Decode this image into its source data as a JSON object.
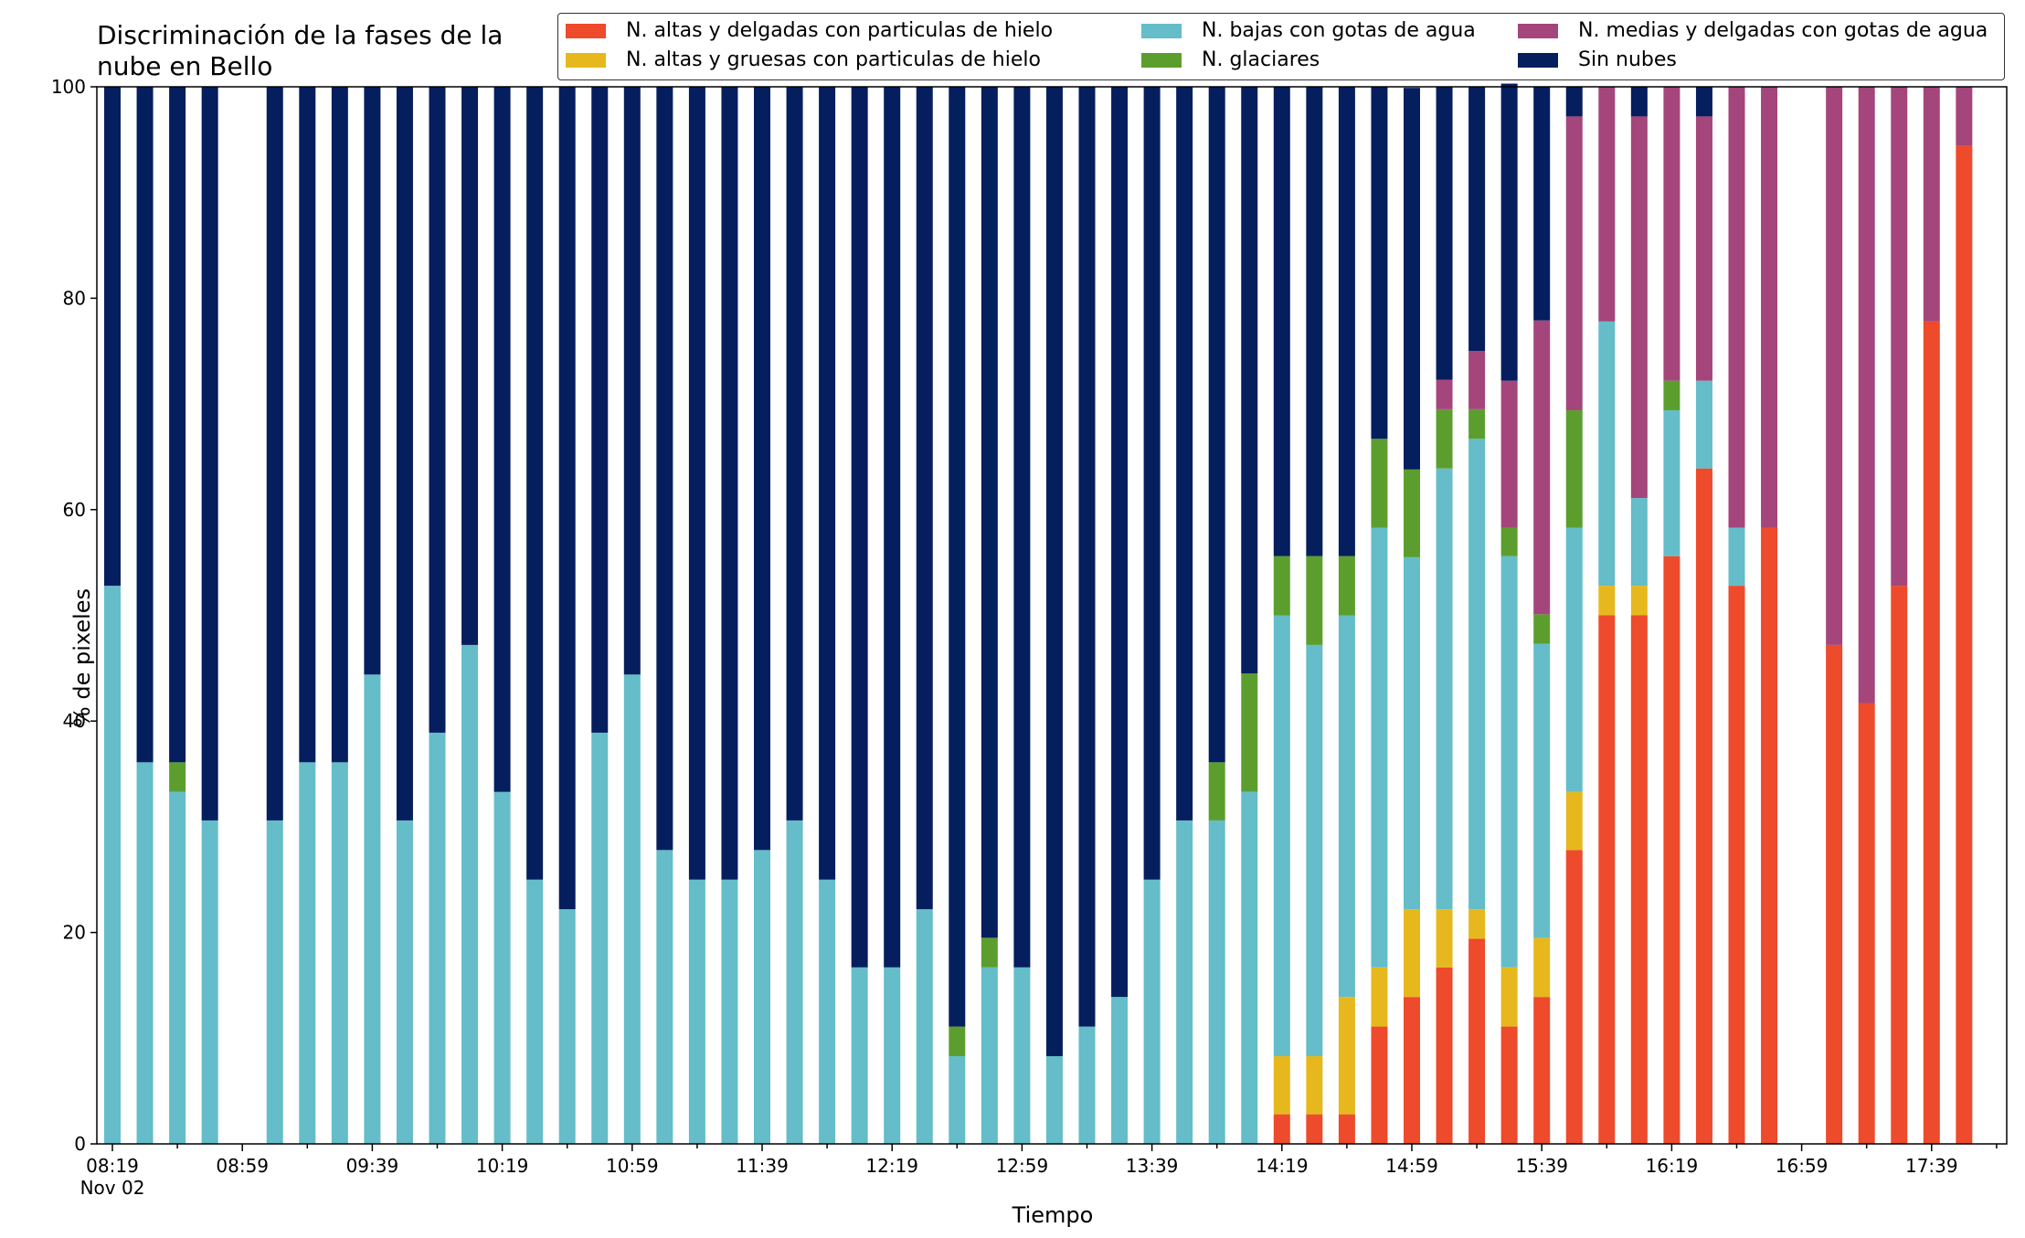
{
  "chart_data": {
    "type": "bar",
    "stacked": true,
    "title": "Discriminación de la fases de la\nnube en Bello",
    "xlabel": "Tiempo",
    "ylabel": "% de pixeles",
    "ylim": [
      0,
      100
    ],
    "yticks": [
      0,
      20,
      40,
      60,
      80,
      100
    ],
    "legend_position": "top-right",
    "xtick_labels": [
      "08:19",
      "08:59",
      "09:39",
      "10:19",
      "10:59",
      "11:39",
      "12:19",
      "12:59",
      "13:39",
      "14:19",
      "14:59",
      "15:39",
      "16:19",
      "16:59",
      "17:39"
    ],
    "xtick_sublabel": "Nov 02",
    "categories": [
      "08:19",
      "08:29",
      "08:39",
      "08:49",
      "08:59",
      "09:09",
      "09:19",
      "09:29",
      "09:39",
      "09:49",
      "09:59",
      "10:09",
      "10:19",
      "10:29",
      "10:39",
      "10:49",
      "10:59",
      "11:09",
      "11:19",
      "11:29",
      "11:39",
      "11:49",
      "11:59",
      "12:09",
      "12:19",
      "12:29",
      "12:39",
      "12:49",
      "12:59",
      "13:09",
      "13:19",
      "13:29",
      "13:39",
      "13:49",
      "13:59",
      "14:09",
      "14:19",
      "14:29",
      "14:39",
      "14:49",
      "14:59",
      "15:09",
      "15:19",
      "15:29",
      "15:39",
      "15:49",
      "15:59",
      "16:09",
      "16:19",
      "16:29",
      "16:39",
      "16:49",
      "16:59",
      "17:09",
      "17:19",
      "17:29",
      "17:39",
      "17:49"
    ],
    "series": [
      {
        "name": "N. altas y delgadas con particulas de hielo",
        "color": "#ee4a2c",
        "values": [
          0,
          0,
          0,
          0,
          null,
          0,
          0,
          0,
          0,
          0,
          0,
          0,
          0,
          0,
          0,
          0,
          0,
          0,
          0,
          0,
          0,
          0,
          0,
          0,
          0,
          0,
          0,
          0,
          0,
          0,
          0,
          0,
          0,
          0,
          0,
          0,
          2.8,
          2.8,
          2.8,
          11.1,
          13.9,
          16.7,
          19.4,
          11.1,
          13.9,
          27.8,
          50,
          50,
          55.6,
          63.9,
          52.8,
          58.3,
          null,
          47.2,
          41.7,
          52.8,
          77.8,
          94.4
        ]
      },
      {
        "name": "N. altas y gruesas con particulas de hielo",
        "color": "#e6b81e",
        "values": [
          0,
          0,
          0,
          0,
          null,
          0,
          0,
          0,
          0,
          0,
          0,
          0,
          0,
          0,
          0,
          0,
          0,
          0,
          0,
          0,
          0,
          0,
          0,
          0,
          0,
          0,
          0,
          0,
          0,
          0,
          0,
          0,
          0,
          0,
          0,
          0,
          5.5,
          5.5,
          11.1,
          5.6,
          8.3,
          5.5,
          2.8,
          5.6,
          5.6,
          5.5,
          2.8,
          2.8,
          0,
          0,
          0,
          0,
          null,
          0,
          0,
          0,
          0,
          0
        ]
      },
      {
        "name": "N. bajas con gotas de agua",
        "color": "#64bdc9",
        "values": [
          52.8,
          36.1,
          33.3,
          30.6,
          null,
          30.6,
          36.1,
          36.1,
          44.4,
          30.6,
          38.9,
          47.2,
          33.3,
          25,
          22.2,
          38.9,
          44.4,
          27.8,
          25,
          25,
          27.8,
          30.6,
          25,
          16.7,
          16.7,
          22.2,
          8.3,
          16.7,
          16.7,
          8.3,
          11.1,
          13.9,
          25,
          30.6,
          30.6,
          33.3,
          41.7,
          38.9,
          36.1,
          41.6,
          33.3,
          41.7,
          44.5,
          38.9,
          27.8,
          25,
          25,
          8.3,
          13.8,
          8.3,
          5.5,
          0,
          null,
          0,
          0,
          0,
          0,
          0
        ]
      },
      {
        "name": "N. glaciares",
        "color": "#5c9e2e",
        "values": [
          0,
          0,
          2.8,
          0,
          null,
          0,
          0,
          0,
          0,
          0,
          0,
          0,
          0,
          0,
          0,
          0,
          0,
          0,
          0,
          0,
          0,
          0,
          0,
          0,
          0,
          0,
          2.8,
          2.8,
          0,
          0,
          0,
          0,
          0,
          0,
          5.5,
          11.2,
          5.6,
          8.4,
          5.6,
          8.4,
          8.3,
          5.6,
          2.8,
          2.7,
          2.8,
          11.1,
          0,
          0,
          2.8,
          0,
          0,
          0,
          null,
          0,
          0,
          0,
          0,
          0
        ]
      },
      {
        "name": "N. medias y delgadas con gotas de agua",
        "color": "#a4467b",
        "values": [
          0,
          0,
          0,
          0,
          null,
          0,
          0,
          0,
          0,
          0,
          0,
          0,
          0,
          0,
          0,
          0,
          0,
          0,
          0,
          0,
          0,
          0,
          0,
          0,
          0,
          0,
          0,
          0,
          0,
          0,
          0,
          0,
          0,
          0,
          0,
          0,
          0,
          0,
          0,
          0,
          0,
          2.8,
          5.5,
          13.9,
          27.8,
          27.8,
          22.2,
          36.1,
          27.8,
          25,
          41.7,
          41.7,
          null,
          52.8,
          58.3,
          47.2,
          22.2,
          5.6
        ]
      },
      {
        "name": "Sin nubes",
        "color": "#041e5e",
        "values": [
          47.2,
          63.9,
          63.9,
          69.4,
          null,
          69.4,
          63.9,
          63.9,
          55.6,
          69.4,
          61.1,
          52.8,
          66.7,
          75,
          77.8,
          61.1,
          55.6,
          72.2,
          75,
          75,
          72.2,
          69.4,
          75,
          83.3,
          83.3,
          77.8,
          88.9,
          80.5,
          83.3,
          91.7,
          88.9,
          86.1,
          75,
          69.4,
          63.9,
          55.5,
          44.4,
          44.4,
          44.4,
          33.3,
          36.1,
          27.7,
          25,
          28.1,
          22.1,
          2.8,
          0,
          2.8,
          0,
          2.8,
          0,
          0,
          null,
          0,
          0,
          0,
          0,
          0
        ]
      }
    ]
  }
}
